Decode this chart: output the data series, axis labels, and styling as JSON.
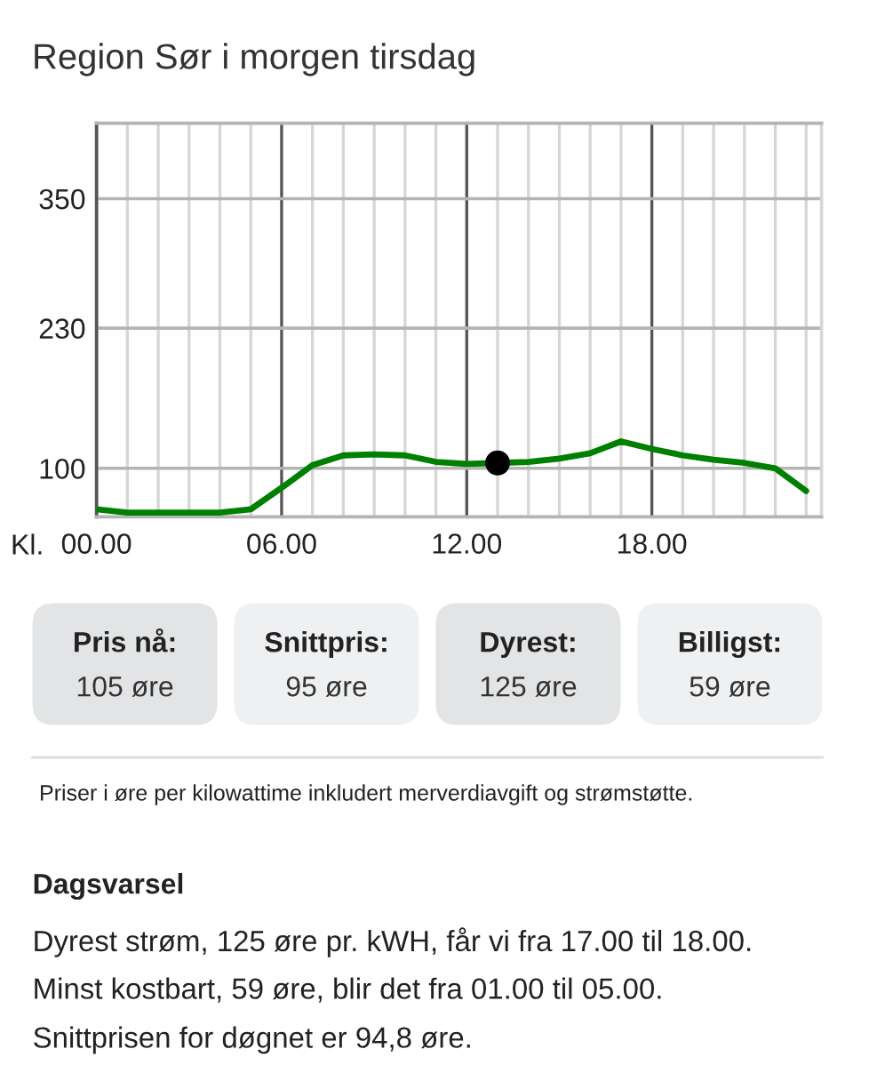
{
  "chart_data": [
    {
      "type": "line",
      "title": "Region Sør i morgen tirsdag",
      "xlabel": "Kl.",
      "x": [
        0,
        1,
        2,
        3,
        4,
        5,
        6,
        7,
        8,
        9,
        10,
        11,
        12,
        13,
        14,
        15,
        16,
        17,
        18,
        19,
        20,
        21,
        22,
        23
      ],
      "series": [
        {
          "type": "line",
          "color": "#008000",
          "values": [
            62,
            59,
            59,
            59,
            59,
            62,
            82,
            103,
            112,
            113,
            112,
            106,
            104,
            105,
            106,
            109,
            114,
            125,
            118,
            112,
            108,
            105,
            100,
            79
          ]
        },
        {
          "type": "scatter",
          "color": "#000000",
          "marker": "circle",
          "x": [
            13
          ],
          "values": [
            105
          ]
        }
      ],
      "xlim": [
        0,
        23.5
      ],
      "ylim": [
        55,
        420
      ],
      "xticks": [
        {
          "value": 0,
          "label": "00.00"
        },
        {
          "value": 1,
          "label": null
        },
        {
          "value": 2,
          "label": null
        },
        {
          "value": 3,
          "label": null
        },
        {
          "value": 4,
          "label": null
        },
        {
          "value": 5,
          "label": null
        },
        {
          "value": 6,
          "label": "06.00"
        },
        {
          "value": 7,
          "label": null
        },
        {
          "value": 8,
          "label": null
        },
        {
          "value": 9,
          "label": null
        },
        {
          "value": 10,
          "label": null
        },
        {
          "value": 11,
          "label": null
        },
        {
          "value": 12,
          "label": "12.00"
        },
        {
          "value": 13,
          "label": null
        },
        {
          "value": 14,
          "label": null
        },
        {
          "value": 15,
          "label": null
        },
        {
          "value": 16,
          "label": null
        },
        {
          "value": 17,
          "label": null
        },
        {
          "value": 18,
          "label": "18.00"
        },
        {
          "value": 19,
          "label": null
        },
        {
          "value": 20,
          "label": null
        },
        {
          "value": 21,
          "label": null
        },
        {
          "value": 22,
          "label": null
        },
        {
          "value": 23,
          "label": null
        }
      ],
      "yticks": [
        100,
        230,
        350
      ],
      "grid": true,
      "annotations": [
        "Priser i øre per kilowattime inkludert merverdiavgift og strømstøtte."
      ]
    },
    {
      "type": "other",
      "annotations": [
        "Pris nå:",
        "105 øre",
        "Snittpris:",
        "95 øre",
        "Dyrest:",
        "125 øre",
        "Billigst:",
        "59 øre"
      ],
      "colors": [
        "#e3e4e6",
        "#eff0f2",
        "#e3e4e6",
        "#eff0f2"
      ]
    },
    {
      "type": "other",
      "title": "Dagsvarsel",
      "annotations": [
        "Dyrest strøm, 125 øre pr. kWH, får vi fra 17.00 til 18.00.",
        "Minst kostbart, 59 øre, blir det fra 01.00 til 05.00.",
        "Snittprisen for døgnet er 94,8 øre."
      ]
    }
  ]
}
